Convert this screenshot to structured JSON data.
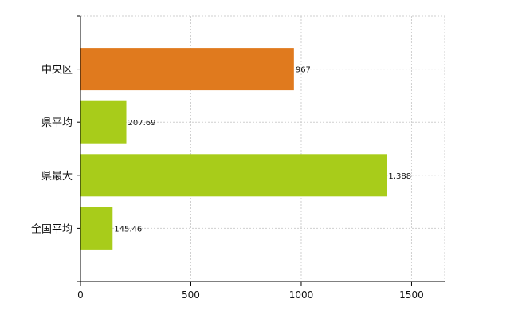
{
  "chart_data": {
    "type": "bar",
    "orientation": "horizontal",
    "title": "",
    "xlabel": "",
    "ylabel": "",
    "categories": [
      "中央区",
      "県平均",
      "県最大",
      "全国平均"
    ],
    "values": [
      967,
      207.69,
      1388,
      145.46
    ],
    "value_labels": [
      "967",
      "207.69",
      "1,388",
      "145.46"
    ],
    "bar_colors": [
      "#e07a1e",
      "#a8cc1a",
      "#a8cc1a",
      "#a8cc1a"
    ],
    "xlim": [
      0,
      1650
    ],
    "xticks": [
      0,
      500,
      1000,
      1500
    ],
    "xtick_labels": [
      "0",
      "500",
      "1000",
      "1500"
    ],
    "grid": true,
    "legend": "none"
  }
}
